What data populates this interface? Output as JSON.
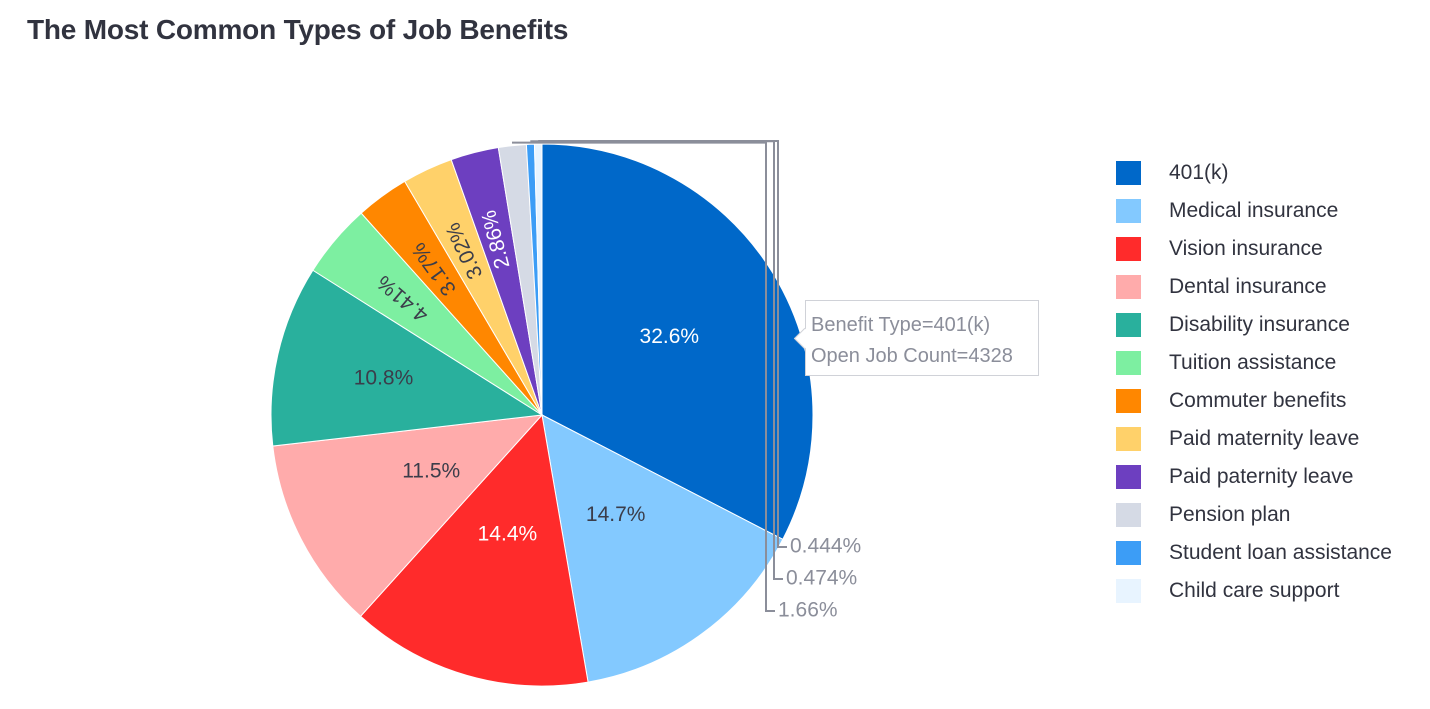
{
  "title": "The Most Common Types of Job Benefits",
  "tooltip": {
    "line1": "Benefit Type=401(k)",
    "line2": "Open Job Count=4328"
  },
  "chart_data": {
    "type": "pie",
    "title": "The Most Common Types of Job Benefits",
    "labels": [
      "401(k)",
      "Medical insurance",
      "Vision insurance",
      "Dental insurance",
      "Disability insurance",
      "Tuition assistance",
      "Commuter benefits",
      "Paid maternity leave",
      "Paid paternity leave",
      "Pension plan",
      "Student loan assistance",
      "Child care support"
    ],
    "percent_labels": [
      "32.6%",
      "14.7%",
      "14.4%",
      "11.5%",
      "10.8%",
      "4.41%",
      "3.17%",
      "3.02%",
      "2.86%",
      "1.66%",
      "0.474%",
      "0.444%"
    ],
    "values": [
      32.6,
      14.7,
      14.4,
      11.5,
      10.8,
      4.41,
      3.17,
      3.02,
      2.86,
      1.66,
      0.474,
      0.444
    ],
    "colors": [
      "#0068c9",
      "#83c9ff",
      "#ff2b2b",
      "#ffabab",
      "#29b09d",
      "#7defa1",
      "#ff8700",
      "#ffd16a",
      "#6d3fc0",
      "#d5dae5",
      "#3c9df6",
      "#e8f4ff"
    ],
    "legend_position": "right",
    "hover": {
      "category": "401(k)",
      "open_job_count": 4328
    }
  }
}
